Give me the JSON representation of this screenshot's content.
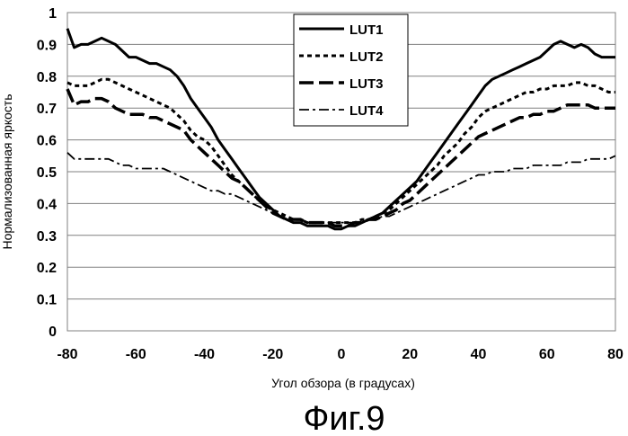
{
  "chart_data": {
    "type": "line",
    "xlabel": "Угол обзора (в градусах)",
    "ylabel": "Нормализованная яркость",
    "xlim": [
      -80,
      80
    ],
    "ylim": [
      0,
      1
    ],
    "xticks": [
      -80,
      -60,
      -40,
      -20,
      0,
      20,
      40,
      60,
      80
    ],
    "yticks": [
      0,
      0.1,
      0.2,
      0.3,
      0.4,
      0.5,
      0.6,
      0.7,
      0.8,
      0.9,
      1
    ],
    "xtick_labels": [
      "-80",
      "-60",
      "-40",
      "-20",
      "0",
      "20",
      "40",
      "60",
      "80"
    ],
    "ytick_labels": [
      "0",
      "0.1",
      "0.2",
      "0.3",
      "0.4",
      "0.5",
      "0.6",
      "0.7",
      "0.8",
      "0.9",
      "1"
    ],
    "grid": "horizontal",
    "legend_position": "top-center",
    "series": [
      {
        "name": "LUT1",
        "style": "solid",
        "x": [
          -80,
          -78,
          -76,
          -74,
          -72,
          -70,
          -68,
          -66,
          -64,
          -62,
          -60,
          -58,
          -56,
          -54,
          -52,
          -50,
          -48,
          -46,
          -44,
          -42,
          -40,
          -38,
          -36,
          -34,
          -32,
          -30,
          -28,
          -26,
          -24,
          -22,
          -20,
          -18,
          -16,
          -14,
          -12,
          -10,
          -8,
          -6,
          -4,
          -2,
          0,
          2,
          4,
          6,
          8,
          10,
          12,
          14,
          16,
          18,
          20,
          22,
          24,
          26,
          28,
          30,
          32,
          34,
          36,
          38,
          40,
          42,
          44,
          46,
          48,
          50,
          52,
          54,
          56,
          58,
          60,
          62,
          64,
          66,
          68,
          70,
          72,
          74,
          76,
          78,
          80
        ],
        "y": [
          0.95,
          0.89,
          0.9,
          0.9,
          0.91,
          0.92,
          0.91,
          0.9,
          0.88,
          0.86,
          0.86,
          0.85,
          0.84,
          0.84,
          0.83,
          0.82,
          0.8,
          0.77,
          0.73,
          0.7,
          0.67,
          0.64,
          0.6,
          0.57,
          0.54,
          0.51,
          0.48,
          0.45,
          0.42,
          0.4,
          0.38,
          0.36,
          0.35,
          0.34,
          0.34,
          0.33,
          0.33,
          0.33,
          0.33,
          0.32,
          0.32,
          0.33,
          0.33,
          0.34,
          0.35,
          0.36,
          0.37,
          0.39,
          0.41,
          0.43,
          0.45,
          0.47,
          0.5,
          0.53,
          0.56,
          0.59,
          0.62,
          0.65,
          0.68,
          0.71,
          0.74,
          0.77,
          0.79,
          0.8,
          0.81,
          0.82,
          0.83,
          0.84,
          0.85,
          0.86,
          0.88,
          0.9,
          0.91,
          0.9,
          0.89,
          0.9,
          0.89,
          0.87,
          0.86,
          0.86,
          0.86
        ]
      },
      {
        "name": "LUT2",
        "style": "dotted",
        "x": [
          -80,
          -78,
          -76,
          -74,
          -72,
          -70,
          -68,
          -66,
          -64,
          -62,
          -60,
          -58,
          -56,
          -54,
          -52,
          -50,
          -48,
          -46,
          -44,
          -42,
          -40,
          -38,
          -36,
          -34,
          -32,
          -30,
          -28,
          -26,
          -24,
          -22,
          -20,
          -18,
          -16,
          -14,
          -12,
          -10,
          -8,
          -6,
          -4,
          -2,
          0,
          2,
          4,
          6,
          8,
          10,
          12,
          14,
          16,
          18,
          20,
          22,
          24,
          26,
          28,
          30,
          32,
          34,
          36,
          38,
          40,
          42,
          44,
          46,
          48,
          50,
          52,
          54,
          56,
          58,
          60,
          62,
          64,
          66,
          68,
          70,
          72,
          74,
          76,
          78,
          80
        ],
        "y": [
          0.78,
          0.77,
          0.77,
          0.77,
          0.78,
          0.79,
          0.79,
          0.78,
          0.77,
          0.76,
          0.75,
          0.74,
          0.73,
          0.72,
          0.71,
          0.7,
          0.68,
          0.66,
          0.63,
          0.61,
          0.6,
          0.58,
          0.55,
          0.52,
          0.49,
          0.47,
          0.45,
          0.43,
          0.41,
          0.39,
          0.38,
          0.37,
          0.36,
          0.35,
          0.35,
          0.34,
          0.34,
          0.34,
          0.34,
          0.34,
          0.34,
          0.34,
          0.34,
          0.35,
          0.35,
          0.36,
          0.37,
          0.38,
          0.4,
          0.42,
          0.44,
          0.46,
          0.48,
          0.5,
          0.52,
          0.55,
          0.57,
          0.59,
          0.62,
          0.64,
          0.67,
          0.69,
          0.7,
          0.71,
          0.72,
          0.73,
          0.74,
          0.75,
          0.75,
          0.76,
          0.76,
          0.77,
          0.77,
          0.77,
          0.78,
          0.78,
          0.77,
          0.77,
          0.76,
          0.75,
          0.75
        ]
      },
      {
        "name": "LUT3",
        "style": "dashed",
        "x": [
          -80,
          -78,
          -76,
          -74,
          -72,
          -70,
          -68,
          -66,
          -64,
          -62,
          -60,
          -58,
          -56,
          -54,
          -52,
          -50,
          -48,
          -46,
          -44,
          -42,
          -40,
          -38,
          -36,
          -34,
          -32,
          -30,
          -28,
          -26,
          -24,
          -22,
          -20,
          -18,
          -16,
          -14,
          -12,
          -10,
          -8,
          -6,
          -4,
          -2,
          0,
          2,
          4,
          6,
          8,
          10,
          12,
          14,
          16,
          18,
          20,
          22,
          24,
          26,
          28,
          30,
          32,
          34,
          36,
          38,
          40,
          42,
          44,
          46,
          48,
          50,
          52,
          54,
          56,
          58,
          60,
          62,
          64,
          66,
          68,
          70,
          72,
          74,
          76,
          78,
          80
        ],
        "y": [
          0.76,
          0.71,
          0.72,
          0.72,
          0.73,
          0.73,
          0.72,
          0.7,
          0.69,
          0.68,
          0.68,
          0.68,
          0.67,
          0.67,
          0.66,
          0.65,
          0.64,
          0.63,
          0.6,
          0.58,
          0.56,
          0.54,
          0.52,
          0.5,
          0.48,
          0.47,
          0.45,
          0.43,
          0.41,
          0.39,
          0.37,
          0.36,
          0.35,
          0.35,
          0.35,
          0.34,
          0.34,
          0.34,
          0.34,
          0.33,
          0.33,
          0.33,
          0.34,
          0.34,
          0.35,
          0.35,
          0.36,
          0.37,
          0.38,
          0.4,
          0.41,
          0.43,
          0.45,
          0.47,
          0.49,
          0.51,
          0.53,
          0.55,
          0.57,
          0.59,
          0.61,
          0.62,
          0.63,
          0.64,
          0.65,
          0.66,
          0.67,
          0.67,
          0.68,
          0.68,
          0.69,
          0.69,
          0.7,
          0.71,
          0.71,
          0.71,
          0.71,
          0.7,
          0.7,
          0.7,
          0.7
        ]
      },
      {
        "name": "LUT4",
        "style": "dash-dot",
        "x": [
          -80,
          -78,
          -76,
          -74,
          -72,
          -70,
          -68,
          -66,
          -64,
          -62,
          -60,
          -58,
          -56,
          -54,
          -52,
          -50,
          -48,
          -46,
          -44,
          -42,
          -40,
          -38,
          -36,
          -34,
          -32,
          -30,
          -28,
          -26,
          -24,
          -22,
          -20,
          -18,
          -16,
          -14,
          -12,
          -10,
          -8,
          -6,
          -4,
          -2,
          0,
          2,
          4,
          6,
          8,
          10,
          12,
          14,
          16,
          18,
          20,
          22,
          24,
          26,
          28,
          30,
          32,
          34,
          36,
          38,
          40,
          42,
          44,
          46,
          48,
          50,
          52,
          54,
          56,
          58,
          60,
          62,
          64,
          66,
          68,
          70,
          72,
          74,
          76,
          78,
          80
        ],
        "y": [
          0.56,
          0.54,
          0.54,
          0.54,
          0.54,
          0.54,
          0.54,
          0.53,
          0.52,
          0.52,
          0.51,
          0.51,
          0.51,
          0.51,
          0.51,
          0.5,
          0.49,
          0.48,
          0.47,
          0.46,
          0.45,
          0.44,
          0.44,
          0.43,
          0.43,
          0.42,
          0.41,
          0.4,
          0.39,
          0.38,
          0.37,
          0.36,
          0.35,
          0.35,
          0.35,
          0.34,
          0.34,
          0.34,
          0.34,
          0.34,
          0.34,
          0.34,
          0.34,
          0.34,
          0.35,
          0.35,
          0.36,
          0.36,
          0.37,
          0.38,
          0.39,
          0.4,
          0.41,
          0.42,
          0.43,
          0.44,
          0.45,
          0.46,
          0.47,
          0.48,
          0.49,
          0.49,
          0.5,
          0.5,
          0.5,
          0.51,
          0.51,
          0.51,
          0.52,
          0.52,
          0.52,
          0.52,
          0.52,
          0.53,
          0.53,
          0.53,
          0.54,
          0.54,
          0.54,
          0.54,
          0.55
        ]
      }
    ]
  },
  "figure_caption": "Фиг.9"
}
